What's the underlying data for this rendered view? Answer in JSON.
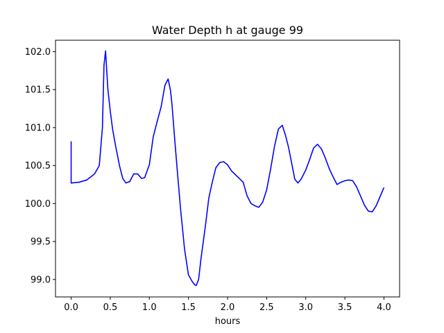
{
  "chart_data": {
    "type": "line",
    "title": "Water Depth h at gauge 99",
    "xlabel": "hours",
    "ylabel": "",
    "xlim": [
      -0.2,
      4.2
    ],
    "ylim": [
      98.77,
      102.15
    ],
    "xticks": [
      0.0,
      0.5,
      1.0,
      1.5,
      2.0,
      2.5,
      3.0,
      3.5,
      4.0
    ],
    "xtick_labels": [
      "0.0",
      "0.5",
      "1.0",
      "1.5",
      "2.0",
      "2.5",
      "3.0",
      "3.5",
      "4.0"
    ],
    "yticks": [
      99.0,
      99.5,
      100.0,
      100.5,
      101.0,
      101.5,
      102.0
    ],
    "ytick_labels": [
      "99.0",
      "99.5",
      "100.0",
      "100.5",
      "101.0",
      "101.5",
      "102.0"
    ],
    "grid": false,
    "series": [
      {
        "color": "#0000ff",
        "x": [
          0.0,
          0.0,
          0.1,
          0.2,
          0.3,
          0.36,
          0.4,
          0.42,
          0.44,
          0.47,
          0.5,
          0.53,
          0.57,
          0.62,
          0.66,
          0.7,
          0.75,
          0.8,
          0.85,
          0.9,
          0.94,
          1.0,
          1.05,
          1.1,
          1.15,
          1.2,
          1.24,
          1.27,
          1.29,
          1.32,
          1.36,
          1.4,
          1.45,
          1.5,
          1.55,
          1.58,
          1.6,
          1.63,
          1.66,
          1.69,
          1.72,
          1.76,
          1.8,
          1.85,
          1.9,
          1.95,
          2.0,
          2.05,
          2.1,
          2.15,
          2.2,
          2.25,
          2.3,
          2.35,
          2.4,
          2.45,
          2.5,
          2.55,
          2.6,
          2.65,
          2.7,
          2.74,
          2.78,
          2.82,
          2.86,
          2.9,
          2.94,
          3.0,
          3.05,
          3.1,
          3.15,
          3.2,
          3.25,
          3.3,
          3.35,
          3.4,
          3.45,
          3.5,
          3.55,
          3.6,
          3.65,
          3.7,
          3.75,
          3.8,
          3.85,
          3.9,
          3.95,
          4.0
        ],
        "y": [
          100.82,
          100.27,
          100.28,
          100.31,
          100.39,
          100.5,
          101.0,
          101.82,
          102.01,
          101.5,
          101.22,
          100.98,
          100.75,
          100.49,
          100.33,
          100.27,
          100.29,
          100.39,
          100.39,
          100.33,
          100.34,
          100.51,
          100.88,
          101.08,
          101.27,
          101.56,
          101.64,
          101.49,
          101.3,
          100.9,
          100.4,
          99.92,
          99.4,
          99.06,
          98.97,
          98.93,
          98.92,
          99.0,
          99.27,
          99.5,
          99.73,
          100.07,
          100.26,
          100.47,
          100.54,
          100.55,
          100.51,
          100.43,
          100.38,
          100.33,
          100.28,
          100.1,
          100.0,
          99.97,
          99.95,
          100.02,
          100.18,
          100.45,
          100.75,
          100.98,
          101.03,
          100.9,
          100.74,
          100.53,
          100.32,
          100.27,
          100.32,
          100.44,
          100.58,
          100.73,
          100.78,
          100.72,
          100.6,
          100.46,
          100.35,
          100.25,
          100.28,
          100.3,
          100.31,
          100.3,
          100.22,
          100.1,
          99.98,
          99.9,
          99.89,
          99.97,
          100.09,
          100.21
        ]
      }
    ]
  }
}
